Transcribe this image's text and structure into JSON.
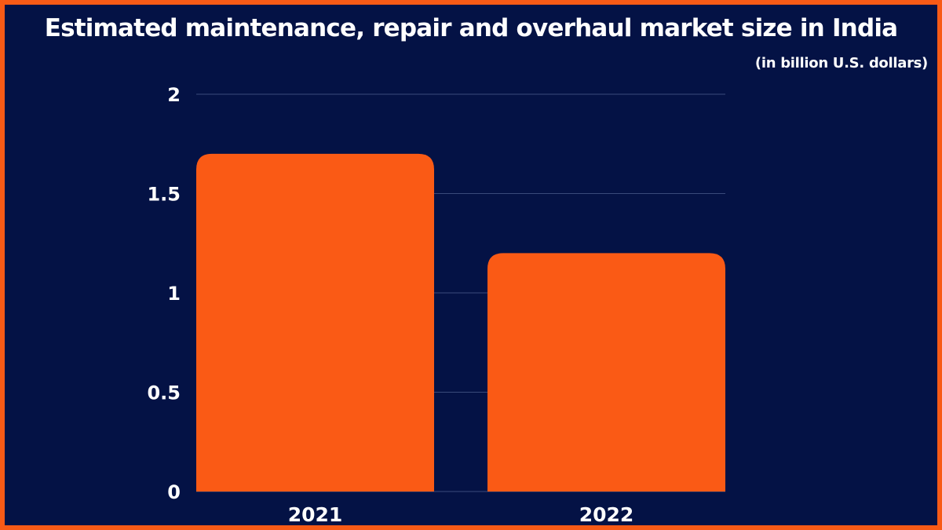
{
  "colors": {
    "background": "#041245",
    "border": "#f85a16",
    "bar": "#fa5a15",
    "gridline": "#3a4a7a",
    "text": "#ffffff"
  },
  "chart_data": {
    "type": "bar",
    "title": "Estimated maintenance, repair and overhaul market size in India",
    "subtitle": "(in billion U.S. dollars)",
    "xlabel": "",
    "ylabel": "",
    "categories": [
      "2021",
      "2022"
    ],
    "values": [
      1.7,
      1.2
    ],
    "ylim": [
      0,
      2
    ],
    "yticks": [
      0,
      0.5,
      1,
      1.5,
      2
    ],
    "ytick_labels": [
      "0",
      "0.5",
      "1",
      "1.5",
      "2"
    ],
    "grid": true,
    "legend": "none"
  }
}
